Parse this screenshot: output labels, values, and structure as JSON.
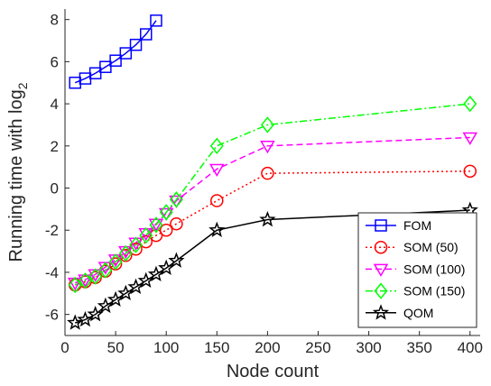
{
  "chart_data": {
    "type": "line",
    "xlabel": "Node count",
    "ylabel": "Running time with log",
    "ylabel_subscript": "2",
    "xlim": [
      0,
      410
    ],
    "ylim": [
      -7,
      8.5
    ],
    "xticks": [
      0,
      50,
      100,
      150,
      200,
      250,
      300,
      350,
      400
    ],
    "yticks": [
      -6,
      -4,
      -2,
      0,
      2,
      4,
      6,
      8
    ],
    "grid": false,
    "legend_position": "bottom-right",
    "series": [
      {
        "name": "FOM",
        "color": "#0000ff",
        "line_style": "solid",
        "marker": "square",
        "x": [
          10,
          20,
          30,
          40,
          50,
          60,
          70,
          80,
          90
        ],
        "y": [
          5.0,
          5.2,
          5.45,
          5.75,
          6.05,
          6.4,
          6.8,
          7.3,
          7.95
        ]
      },
      {
        "name": "SOM (50)",
        "color": "#ff0000",
        "line_style": "dotted",
        "marker": "circle",
        "x": [
          10,
          20,
          30,
          40,
          50,
          60,
          70,
          80,
          90,
          100,
          110,
          150,
          200,
          400
        ],
        "y": [
          -4.6,
          -4.45,
          -4.25,
          -3.95,
          -3.6,
          -3.2,
          -2.9,
          -2.55,
          -2.25,
          -2.0,
          -1.7,
          -0.6,
          0.7,
          0.8
        ]
      },
      {
        "name": "SOM (100)",
        "color": "#ff00ff",
        "line_style": "dashed",
        "marker": "triangle-down",
        "x": [
          10,
          20,
          30,
          40,
          50,
          60,
          70,
          80,
          90,
          100,
          110,
          150,
          200,
          400
        ],
        "y": [
          -4.5,
          -4.35,
          -4.1,
          -3.75,
          -3.4,
          -3.0,
          -2.6,
          -2.15,
          -1.7,
          -1.2,
          -0.6,
          0.9,
          2.0,
          2.4
        ]
      },
      {
        "name": "SOM (150)",
        "color": "#00ff00",
        "line_style": "dashdot",
        "marker": "diamond",
        "x": [
          10,
          20,
          30,
          40,
          50,
          60,
          70,
          80,
          90,
          100,
          110,
          150,
          200,
          400
        ],
        "y": [
          -4.6,
          -4.4,
          -4.2,
          -3.9,
          -3.5,
          -3.1,
          -2.7,
          -2.25,
          -1.75,
          -1.15,
          -0.55,
          2.0,
          3.0,
          4.0
        ]
      },
      {
        "name": "QOM",
        "color": "#000000",
        "line_style": "solid",
        "marker": "star",
        "x": [
          10,
          20,
          30,
          40,
          50,
          60,
          70,
          80,
          90,
          100,
          110,
          150,
          200,
          400
        ],
        "y": [
          -6.4,
          -6.25,
          -6.0,
          -5.6,
          -5.3,
          -5.0,
          -4.7,
          -4.4,
          -4.1,
          -3.8,
          -3.45,
          -2.0,
          -1.5,
          -1.05
        ]
      }
    ]
  }
}
